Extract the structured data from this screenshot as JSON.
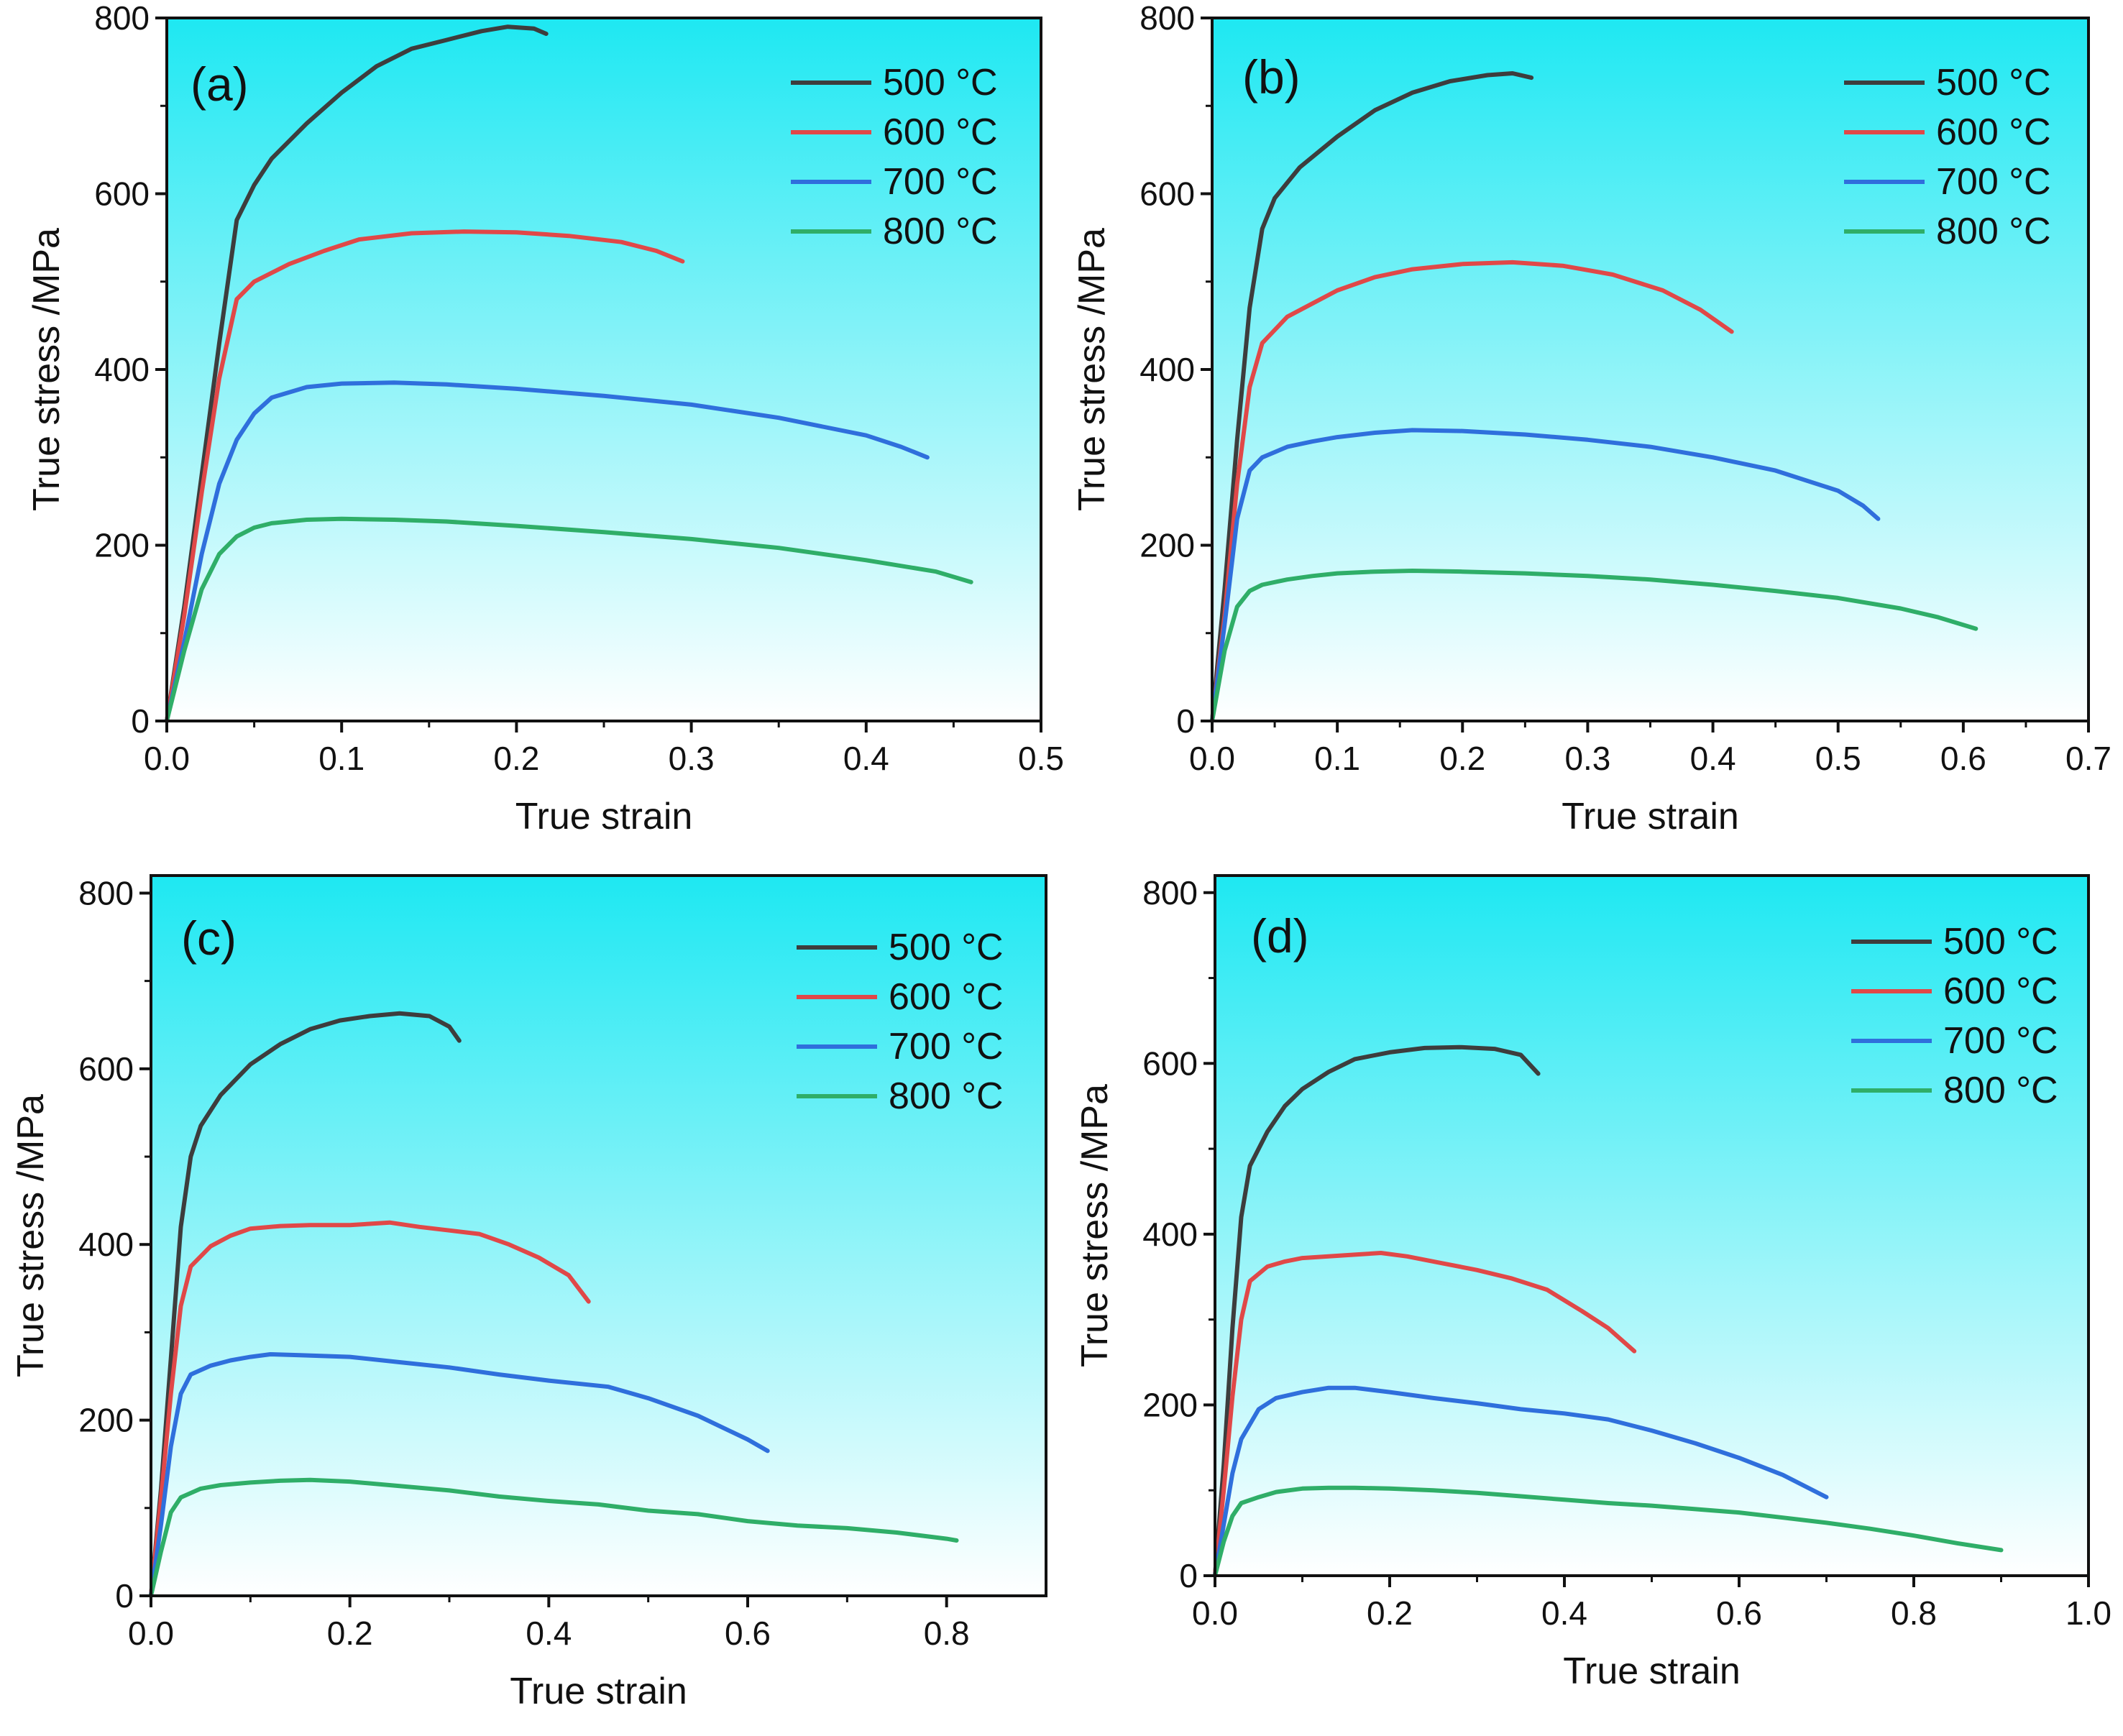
{
  "figure": {
    "panel_order": [
      "a",
      "b",
      "c",
      "d"
    ],
    "colors": {
      "500 °C": "#3d3d3d",
      "600 °C": "#e04848",
      "700 °C": "#2f6fdc",
      "800 °C": "#2fae68",
      "plot_top": "#1ee8f2",
      "plot_bottom": "#ffffff",
      "axis": "#111111"
    }
  },
  "chart_data": [
    {
      "type": "line",
      "panel": "a",
      "tag": "(a)",
      "xlabel": "True strain",
      "ylabel": "True stress /MPa",
      "xlim": [
        0,
        0.5
      ],
      "ylim": [
        0,
        800
      ],
      "xticks": [
        0.0,
        0.1,
        0.2,
        0.3,
        0.4,
        0.5
      ],
      "xtick_labels": [
        "0.0",
        "0.1",
        "0.2",
        "0.3",
        "0.4",
        "0.5"
      ],
      "yticks": [
        0,
        200,
        400,
        600,
        800
      ],
      "ytick_labels": [
        "0",
        "200",
        "400",
        "600",
        "800"
      ],
      "legend": [
        "500 °C",
        "600 °C",
        "700 °C",
        "800 °C"
      ],
      "legend_position": "top-right",
      "series": [
        {
          "name": "500 °C",
          "x": [
            0,
            0.01,
            0.02,
            0.03,
            0.04,
            0.05,
            0.06,
            0.08,
            0.1,
            0.12,
            0.14,
            0.16,
            0.18,
            0.195,
            0.21,
            0.217
          ],
          "y": [
            0,
            130,
            280,
            430,
            570,
            610,
            640,
            680,
            715,
            745,
            765,
            775,
            785,
            790,
            788,
            782
          ]
        },
        {
          "name": "600 °C",
          "x": [
            0,
            0.01,
            0.02,
            0.03,
            0.04,
            0.05,
            0.07,
            0.09,
            0.11,
            0.14,
            0.17,
            0.2,
            0.23,
            0.26,
            0.28,
            0.295
          ],
          "y": [
            0,
            120,
            260,
            390,
            480,
            500,
            520,
            535,
            548,
            555,
            557,
            556,
            552,
            545,
            535,
            523
          ]
        },
        {
          "name": "700 °C",
          "x": [
            0,
            0.01,
            0.02,
            0.03,
            0.04,
            0.05,
            0.06,
            0.08,
            0.1,
            0.13,
            0.16,
            0.2,
            0.25,
            0.3,
            0.35,
            0.4,
            0.42,
            0.435
          ],
          "y": [
            0,
            90,
            190,
            270,
            320,
            350,
            368,
            380,
            384,
            385,
            383,
            378,
            370,
            360,
            345,
            325,
            312,
            300
          ]
        },
        {
          "name": "800 °C",
          "x": [
            0,
            0.01,
            0.02,
            0.03,
            0.04,
            0.05,
            0.06,
            0.08,
            0.1,
            0.13,
            0.16,
            0.2,
            0.25,
            0.3,
            0.35,
            0.4,
            0.44,
            0.46
          ],
          "y": [
            0,
            80,
            150,
            190,
            210,
            220,
            225,
            229,
            230,
            229,
            227,
            222,
            215,
            207,
            197,
            183,
            170,
            158
          ]
        }
      ]
    },
    {
      "type": "line",
      "panel": "b",
      "tag": "(b)",
      "xlabel": "True strain",
      "ylabel": "True stress /MPa",
      "xlim": [
        0,
        0.7
      ],
      "ylim": [
        0,
        800
      ],
      "xticks": [
        0.0,
        0.1,
        0.2,
        0.3,
        0.4,
        0.5,
        0.6,
        0.7
      ],
      "xtick_labels": [
        "0.0",
        "0.1",
        "0.2",
        "0.3",
        "0.4",
        "0.5",
        "0.6",
        "0.7"
      ],
      "yticks": [
        0,
        200,
        400,
        600,
        800
      ],
      "ytick_labels": [
        "0",
        "200",
        "400",
        "600",
        "800"
      ],
      "legend": [
        "500 °C",
        "600 °C",
        "700 °C",
        "800 °C"
      ],
      "legend_position": "top-right",
      "series": [
        {
          "name": "500 °C",
          "x": [
            0,
            0.01,
            0.02,
            0.03,
            0.04,
            0.05,
            0.07,
            0.1,
            0.13,
            0.16,
            0.19,
            0.22,
            0.24,
            0.255
          ],
          "y": [
            0,
            150,
            320,
            470,
            560,
            595,
            630,
            665,
            695,
            715,
            728,
            735,
            737,
            732
          ]
        },
        {
          "name": "600 °C",
          "x": [
            0,
            0.01,
            0.02,
            0.03,
            0.04,
            0.06,
            0.08,
            0.1,
            0.13,
            0.16,
            0.2,
            0.24,
            0.28,
            0.32,
            0.36,
            0.39,
            0.415
          ],
          "y": [
            0,
            120,
            270,
            380,
            430,
            460,
            475,
            490,
            505,
            514,
            520,
            522,
            518,
            508,
            490,
            468,
            443
          ]
        },
        {
          "name": "700 °C",
          "x": [
            0,
            0.01,
            0.02,
            0.03,
            0.04,
            0.06,
            0.08,
            0.1,
            0.13,
            0.16,
            0.2,
            0.25,
            0.3,
            0.35,
            0.4,
            0.45,
            0.5,
            0.52,
            0.532
          ],
          "y": [
            0,
            110,
            230,
            285,
            300,
            312,
            318,
            323,
            328,
            331,
            330,
            326,
            320,
            312,
            300,
            285,
            262,
            245,
            230
          ]
        },
        {
          "name": "800 °C",
          "x": [
            0,
            0.01,
            0.02,
            0.03,
            0.04,
            0.06,
            0.08,
            0.1,
            0.13,
            0.16,
            0.2,
            0.25,
            0.3,
            0.35,
            0.4,
            0.45,
            0.5,
            0.55,
            0.58,
            0.61
          ],
          "y": [
            0,
            80,
            130,
            148,
            155,
            161,
            165,
            168,
            170,
            171,
            170,
            168,
            165,
            161,
            155,
            148,
            140,
            128,
            118,
            105
          ]
        }
      ]
    },
    {
      "type": "line",
      "panel": "c",
      "tag": "(c)",
      "xlabel": "True strain",
      "ylabel": "True stress /MPa",
      "xlim": [
        0,
        0.9
      ],
      "ylim": [
        0,
        820
      ],
      "xticks": [
        0.0,
        0.2,
        0.4,
        0.6,
        0.8
      ],
      "xtick_labels": [
        "0.0",
        "0.2",
        "0.4",
        "0.6",
        "0.8"
      ],
      "yticks": [
        0,
        200,
        400,
        600,
        800
      ],
      "ytick_labels": [
        "0",
        "200",
        "400",
        "600",
        "800"
      ],
      "legend": [
        "500 °C",
        "600 °C",
        "700 °C",
        "800 °C"
      ],
      "legend_position": "top-right",
      "series": [
        {
          "name": "500 °C",
          "x": [
            0,
            0.01,
            0.02,
            0.03,
            0.04,
            0.05,
            0.07,
            0.1,
            0.13,
            0.16,
            0.19,
            0.22,
            0.25,
            0.28,
            0.3,
            0.31
          ],
          "y": [
            0,
            120,
            270,
            420,
            500,
            535,
            570,
            605,
            628,
            645,
            655,
            660,
            663,
            660,
            648,
            632
          ]
        },
        {
          "name": "600 °C",
          "x": [
            0,
            0.01,
            0.02,
            0.03,
            0.04,
            0.06,
            0.08,
            0.1,
            0.13,
            0.16,
            0.2,
            0.24,
            0.27,
            0.3,
            0.33,
            0.36,
            0.39,
            0.42,
            0.44
          ],
          "y": [
            0,
            110,
            230,
            330,
            375,
            398,
            410,
            418,
            421,
            422,
            422,
            425,
            420,
            416,
            412,
            400,
            385,
            365,
            335
          ]
        },
        {
          "name": "700 °C",
          "x": [
            0,
            0.01,
            0.02,
            0.03,
            0.04,
            0.06,
            0.08,
            0.1,
            0.12,
            0.15,
            0.2,
            0.25,
            0.3,
            0.35,
            0.4,
            0.46,
            0.5,
            0.55,
            0.6,
            0.62
          ],
          "y": [
            0,
            80,
            170,
            230,
            252,
            262,
            268,
            272,
            275,
            274,
            272,
            266,
            260,
            252,
            245,
            238,
            225,
            205,
            178,
            165
          ]
        },
        {
          "name": "800 °C",
          "x": [
            0,
            0.01,
            0.02,
            0.03,
            0.05,
            0.07,
            0.1,
            0.13,
            0.16,
            0.2,
            0.25,
            0.3,
            0.35,
            0.4,
            0.45,
            0.5,
            0.55,
            0.6,
            0.65,
            0.7,
            0.75,
            0.8,
            0.81
          ],
          "y": [
            0,
            50,
            95,
            112,
            122,
            126,
            129,
            131,
            132,
            130,
            125,
            120,
            113,
            108,
            104,
            97,
            93,
            85,
            80,
            77,
            72,
            65,
            63
          ]
        }
      ]
    },
    {
      "type": "line",
      "panel": "d",
      "tag": "(d)",
      "xlabel": "True strain",
      "ylabel": "True stress /MPa",
      "xlim": [
        0,
        1.0
      ],
      "ylim": [
        0,
        820
      ],
      "xticks": [
        0.0,
        0.2,
        0.4,
        0.6,
        0.8,
        1.0
      ],
      "xtick_labels": [
        "0.0",
        "0.2",
        "0.4",
        "0.6",
        "0.8",
        "1.0"
      ],
      "yticks": [
        0,
        200,
        400,
        600,
        800
      ],
      "ytick_labels": [
        "0",
        "200",
        "400",
        "600",
        "800"
      ],
      "legend": [
        "500 °C",
        "600 °C",
        "700 °C",
        "800 °C"
      ],
      "legend_position": "top-right",
      "series": [
        {
          "name": "500 °C",
          "x": [
            0,
            0.01,
            0.02,
            0.03,
            0.04,
            0.06,
            0.08,
            0.1,
            0.13,
            0.16,
            0.2,
            0.24,
            0.28,
            0.32,
            0.35,
            0.37
          ],
          "y": [
            0,
            130,
            290,
            420,
            480,
            520,
            550,
            570,
            590,
            605,
            613,
            618,
            619,
            617,
            610,
            588
          ]
        },
        {
          "name": "600 °C",
          "x": [
            0,
            0.01,
            0.02,
            0.03,
            0.04,
            0.06,
            0.08,
            0.1,
            0.13,
            0.16,
            0.19,
            0.22,
            0.26,
            0.3,
            0.34,
            0.38,
            0.42,
            0.45,
            0.48
          ],
          "y": [
            0,
            100,
            210,
            300,
            345,
            362,
            368,
            372,
            374,
            376,
            378,
            374,
            366,
            358,
            348,
            335,
            310,
            290,
            263
          ]
        },
        {
          "name": "700 °C",
          "x": [
            0,
            0.01,
            0.02,
            0.03,
            0.05,
            0.07,
            0.1,
            0.13,
            0.16,
            0.2,
            0.25,
            0.3,
            0.35,
            0.4,
            0.45,
            0.5,
            0.55,
            0.6,
            0.65,
            0.7
          ],
          "y": [
            0,
            60,
            120,
            160,
            195,
            208,
            215,
            220,
            220,
            215,
            208,
            202,
            195,
            190,
            183,
            170,
            155,
            138,
            118,
            92
          ]
        },
        {
          "name": "800 °C",
          "x": [
            0,
            0.01,
            0.02,
            0.03,
            0.05,
            0.07,
            0.1,
            0.13,
            0.16,
            0.2,
            0.25,
            0.3,
            0.35,
            0.4,
            0.45,
            0.5,
            0.55,
            0.6,
            0.65,
            0.7,
            0.75,
            0.8,
            0.85,
            0.9
          ],
          "y": [
            0,
            40,
            70,
            85,
            92,
            98,
            102,
            103,
            103,
            102,
            100,
            97,
            93,
            89,
            85,
            82,
            78,
            74,
            68,
            62,
            55,
            47,
            38,
            30
          ]
        }
      ]
    }
  ]
}
